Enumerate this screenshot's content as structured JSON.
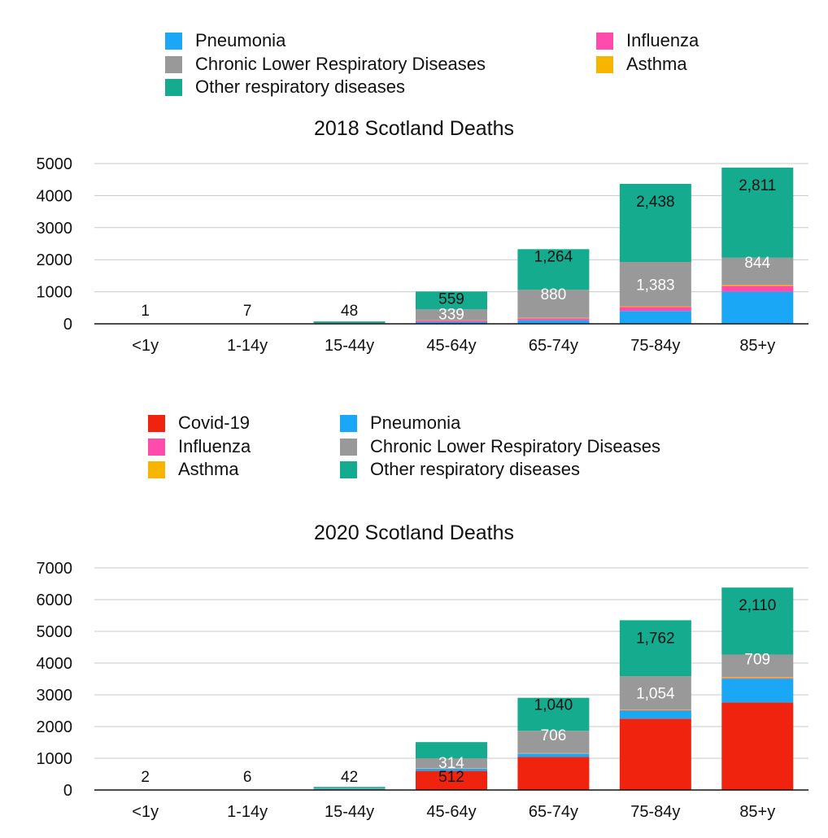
{
  "chart_data": [
    {
      "type": "bar",
      "stacked": true,
      "title": "2018 Scotland Deaths",
      "xlabel": "",
      "ylabel": "",
      "ylim": [
        0,
        5000
      ],
      "yticks": [
        0,
        1000,
        2000,
        3000,
        4000,
        5000
      ],
      "grid": true,
      "legend_position": "top",
      "categories": [
        "<1y",
        "1-14y",
        "15-44y",
        "45-64y",
        "65-74y",
        "75-84y",
        "85+y"
      ],
      "series": [
        {
          "name": "Pneumonia",
          "color": "#1aa7f5",
          "values": [
            0,
            0,
            10,
            60,
            110,
            400,
            1000
          ]
        },
        {
          "name": "Influenza",
          "color": "#ff4bab",
          "values": [
            0,
            0,
            3,
            40,
            60,
            120,
            185
          ]
        },
        {
          "name": "Asthma",
          "color": "#f7b500",
          "values": [
            0,
            0,
            3,
            10,
            14,
            24,
            32
          ]
        },
        {
          "name": "Chronic Lower Respiratory Diseases",
          "color": "#999999",
          "values": [
            0,
            0,
            10,
            339,
            880,
            1383,
            844
          ]
        },
        {
          "name": "Other respiratory diseases",
          "color": "#14ab8e",
          "values": [
            1,
            7,
            48,
            559,
            1264,
            2438,
            2811
          ]
        }
      ],
      "data_labels": [
        {
          "category": "<1y",
          "text": "1"
        },
        {
          "category": "1-14y",
          "text": "7"
        },
        {
          "category": "15-44y",
          "text": "48"
        },
        {
          "category": "45-64y",
          "text": "559"
        },
        {
          "category": "45-64y",
          "text": "339"
        },
        {
          "category": "65-74y",
          "text": "1,264"
        },
        {
          "category": "65-74y",
          "text": "880"
        },
        {
          "category": "75-84y",
          "text": "2,438"
        },
        {
          "category": "75-84y",
          "text": "1,383"
        },
        {
          "category": "85+y",
          "text": "2,811"
        },
        {
          "category": "85+y",
          "text": "844"
        }
      ]
    },
    {
      "type": "bar",
      "stacked": true,
      "title": "2020 Scotland Deaths",
      "xlabel": "",
      "ylabel": "",
      "ylim": [
        0,
        7000
      ],
      "yticks": [
        0,
        1000,
        2000,
        3000,
        4000,
        5000,
        6000,
        7000
      ],
      "grid": true,
      "legend_position": "top",
      "categories": [
        "<1y",
        "1-14y",
        "15-44y",
        "45-64y",
        "65-74y",
        "75-84y",
        "85+y"
      ],
      "series": [
        {
          "name": "Covid-19",
          "color": "#f0230f",
          "values": [
            0,
            0,
            20,
            600,
            1040,
            2250,
            2760
          ]
        },
        {
          "name": "Pneumonia",
          "color": "#1aa7f5",
          "values": [
            0,
            0,
            20,
            70,
            100,
            250,
            750
          ]
        },
        {
          "name": "Influenza",
          "color": "#ff4bab",
          "values": [
            0,
            0,
            2,
            5,
            8,
            12,
            18
          ]
        },
        {
          "name": "Asthma",
          "color": "#f7b500",
          "values": [
            0,
            0,
            3,
            8,
            12,
            22,
            33
          ]
        },
        {
          "name": "Chronic Lower Respiratory Diseases",
          "color": "#999999",
          "values": [
            0,
            0,
            10,
            314,
            706,
            1054,
            709
          ]
        },
        {
          "name": "Other respiratory diseases",
          "color": "#14ab8e",
          "values": [
            2,
            6,
            42,
            512,
            1040,
            1762,
            2110
          ]
        }
      ],
      "data_labels": [
        {
          "category": "<1y",
          "text": "2"
        },
        {
          "category": "1-14y",
          "text": "6"
        },
        {
          "category": "15-44y",
          "text": "42"
        },
        {
          "category": "45-64y",
          "text": "512"
        },
        {
          "category": "45-64y",
          "text": "314"
        },
        {
          "category": "65-74y",
          "text": "1,040"
        },
        {
          "category": "65-74y",
          "text": "706"
        },
        {
          "category": "75-84y",
          "text": "1,762"
        },
        {
          "category": "75-84y",
          "text": "1,054"
        },
        {
          "category": "85+y",
          "text": "2,110"
        },
        {
          "category": "85+y",
          "text": "709"
        }
      ]
    }
  ],
  "legends": [
    {
      "items": [
        {
          "label": "Pneumonia",
          "color": "#1aa7f5"
        },
        {
          "label": "Influenza",
          "color": "#ff4bab"
        },
        {
          "label": "Chronic Lower Respiratory Diseases",
          "color": "#999999"
        },
        {
          "label": "Asthma",
          "color": "#f7b500"
        },
        {
          "label": "Other respiratory diseases",
          "color": "#14ab8e"
        }
      ]
    },
    {
      "items": [
        {
          "label": "Covid-19",
          "color": "#f0230f"
        },
        {
          "label": "Pneumonia",
          "color": "#1aa7f5"
        },
        {
          "label": "Influenza",
          "color": "#ff4bab"
        },
        {
          "label": "Chronic Lower Respiratory Diseases",
          "color": "#999999"
        },
        {
          "label": "Asthma",
          "color": "#f7b500"
        },
        {
          "label": "Other respiratory diseases",
          "color": "#14ab8e"
        }
      ]
    }
  ]
}
